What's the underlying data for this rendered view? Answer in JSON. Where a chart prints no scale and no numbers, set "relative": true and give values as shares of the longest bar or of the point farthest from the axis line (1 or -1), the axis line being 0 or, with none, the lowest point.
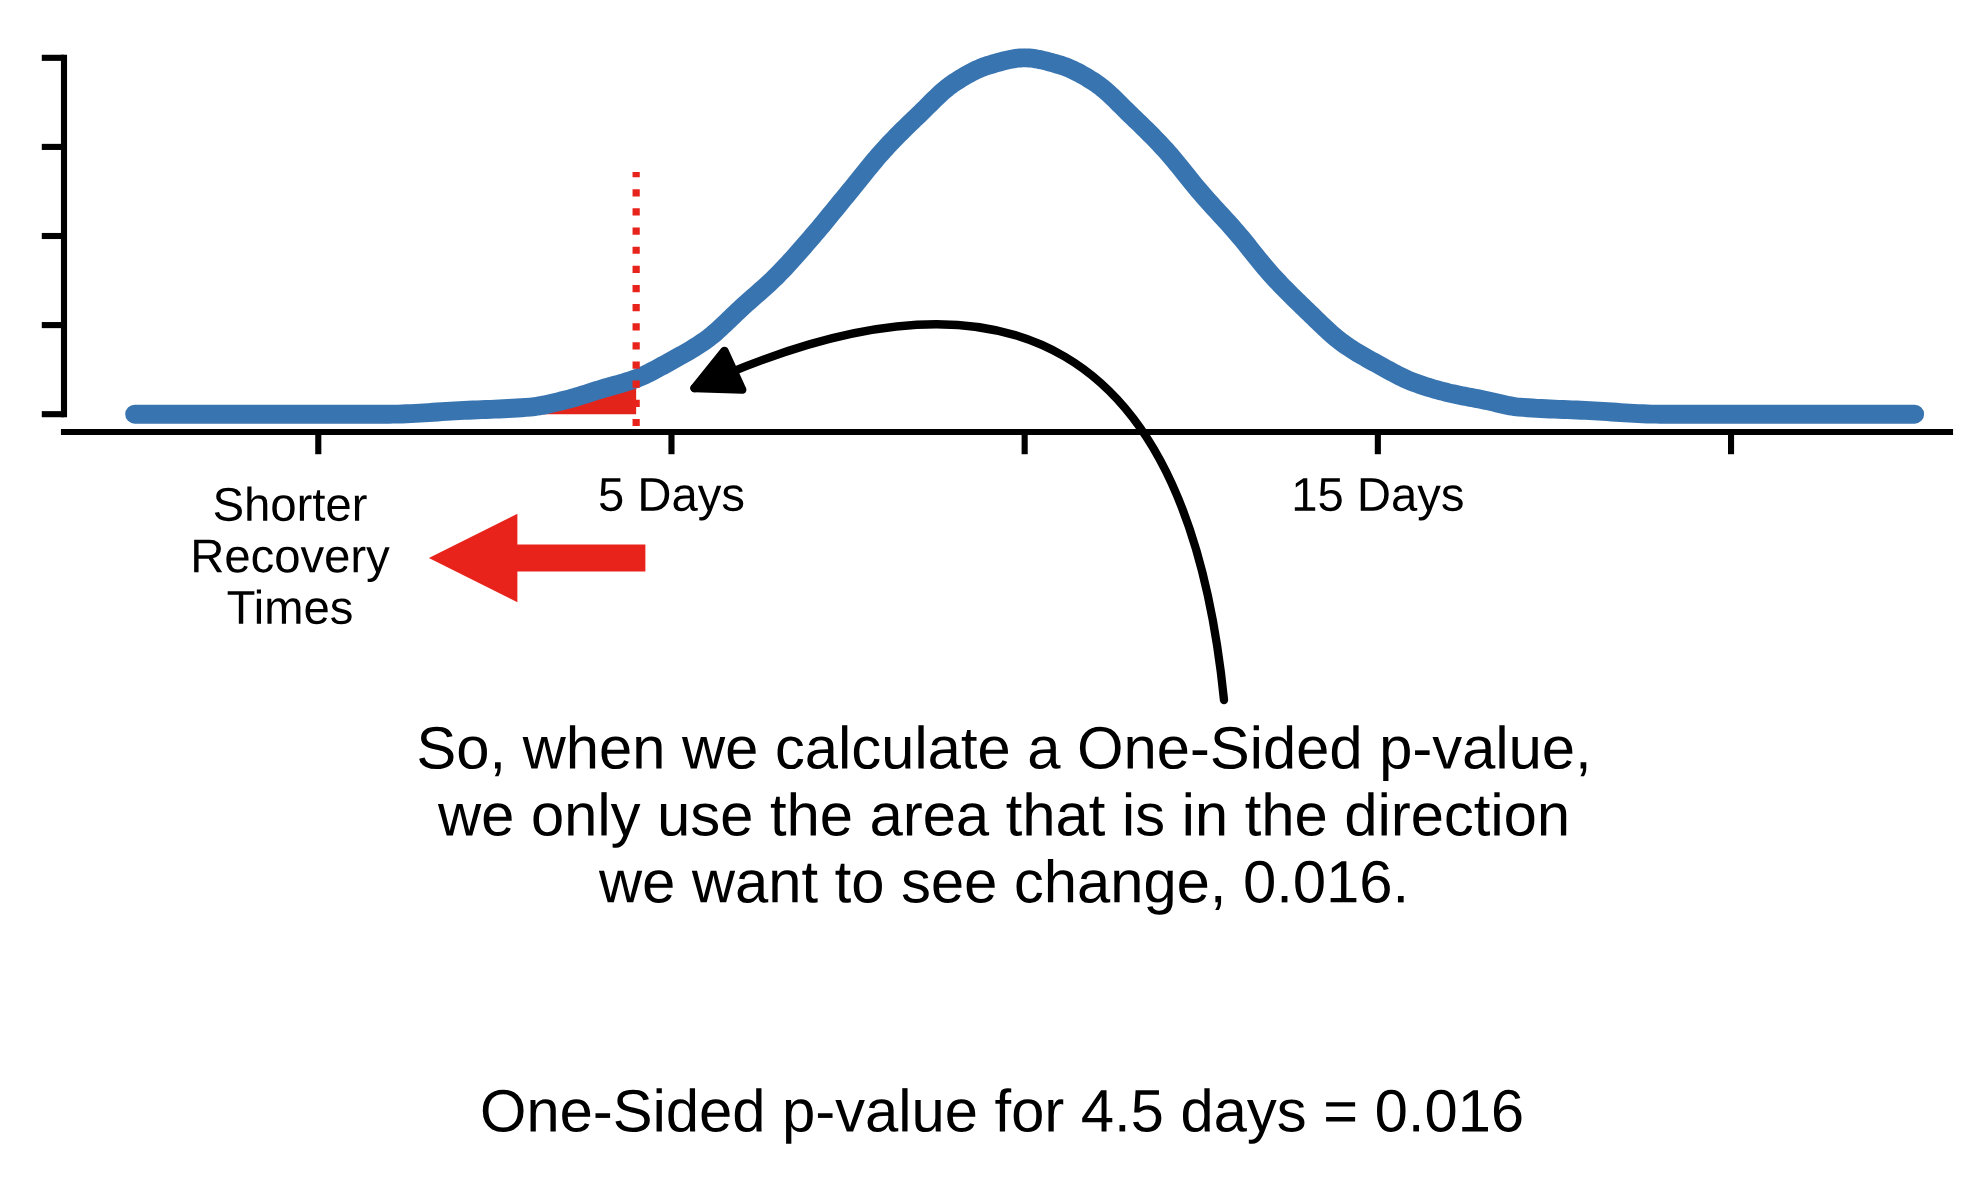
{
  "chart_data": {
    "type": "line",
    "relative": true,
    "tick_labels": "x",
    "xlim": [
      -3.6,
      23.1
    ],
    "xticks": [
      {
        "value": 0,
        "label": null
      },
      {
        "value": 5,
        "label": "5 Days"
      },
      {
        "value": 10,
        "label": null
      },
      {
        "value": 15,
        "label": "15 Days"
      },
      {
        "value": 20,
        "label": null
      }
    ],
    "series": [
      {
        "type": "area",
        "color": "#e3241b",
        "x": [
          -2.6,
          -1,
          0,
          1,
          2,
          3,
          3.5,
          4,
          4.5
        ],
        "values": [
          0,
          0,
          0,
          0,
          0.01,
          0.02,
          0.04,
          0.07,
          0.1
        ]
      },
      {
        "type": "line",
        "color": "#3874b0",
        "x": [
          -2.6,
          -1,
          0,
          1,
          2,
          3,
          3.5,
          4,
          4.5,
          5,
          5.5,
          6,
          6.5,
          7,
          7.5,
          8,
          8.5,
          9,
          9.5,
          10,
          10.5,
          11,
          11.5,
          12,
          12.5,
          13,
          13.5,
          14,
          14.5,
          15,
          15.5,
          16,
          16.5,
          17,
          18,
          19,
          20,
          21,
          22.6
        ],
        "values": [
          0,
          0,
          0,
          0,
          0.01,
          0.02,
          0.04,
          0.07,
          0.1,
          0.15,
          0.21,
          0.3,
          0.39,
          0.5,
          0.62,
          0.74,
          0.84,
          0.93,
          0.98,
          1,
          0.98,
          0.93,
          0.84,
          0.74,
          0.62,
          0.51,
          0.39,
          0.29,
          0.2,
          0.14,
          0.09,
          0.06,
          0.04,
          0.02,
          0.01,
          0,
          0,
          0,
          0
        ]
      }
    ],
    "ref_lines": [
      {
        "axis": "x",
        "value": 4.5,
        "color": "#e8231b",
        "line_style": "dotted"
      }
    ],
    "annotations": [
      "So, when we calculate a One-Sided p-value,\nwe only use the area that is in the direction\nwe want to see change, 0.016.",
      "Shorter\nRecovery\nTimes",
      "One-Sided p-value for 4.5 days = 0.016"
    ]
  }
}
